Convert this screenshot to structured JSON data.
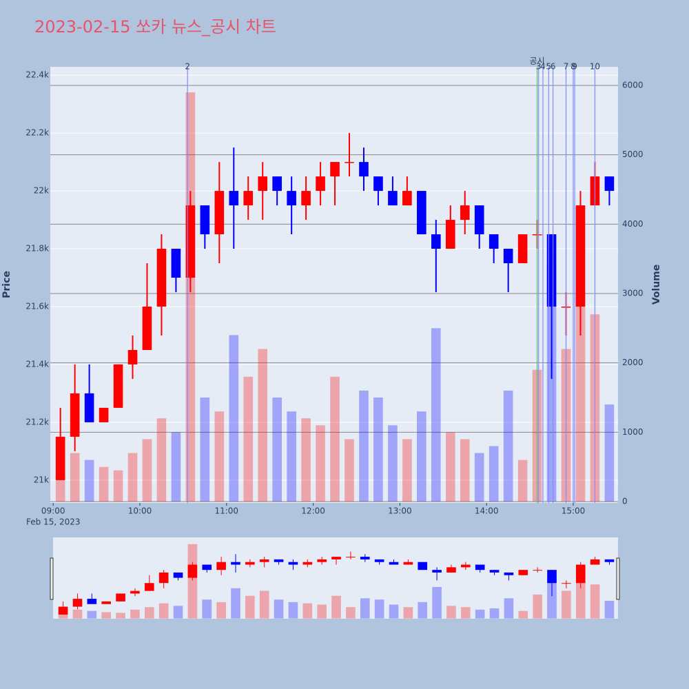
{
  "chart_data": {
    "type": "candlestick",
    "title": "2023-02-15 쏘카 뉴스_공시 차트",
    "y_label": "Price",
    "y2_label": "Volume",
    "x_date_label": "Feb 15, 2023",
    "x": [
      "09:00",
      "09:10",
      "09:20",
      "09:30",
      "09:40",
      "09:50",
      "10:00",
      "10:10",
      "10:20",
      "10:30",
      "10:40",
      "10:50",
      "11:00",
      "11:10",
      "11:20",
      "11:30",
      "11:40",
      "11:50",
      "12:00",
      "12:10",
      "12:20",
      "12:30",
      "12:40",
      "12:50",
      "13:00",
      "13:10",
      "13:20",
      "13:30",
      "13:40",
      "13:50",
      "14:00",
      "14:10",
      "14:20",
      "14:30",
      "14:40",
      "14:50",
      "15:00",
      "15:10",
      "15:20"
    ],
    "open": [
      21000,
      21150,
      21300,
      21200,
      21250,
      21400,
      21450,
      21600,
      21800,
      21700,
      21950,
      21850,
      22000,
      21950,
      22000,
      22050,
      22000,
      21950,
      22000,
      22050,
      22100,
      22100,
      22050,
      22000,
      21950,
      22000,
      21850,
      21800,
      21900,
      21950,
      21850,
      21800,
      21750,
      21850,
      21850,
      21600,
      21600,
      21950,
      22050
    ],
    "high": [
      21250,
      21400,
      21400,
      21250,
      21400,
      21500,
      21750,
      21850,
      21800,
      22000,
      21950,
      22100,
      22150,
      22050,
      22100,
      22050,
      22050,
      22050,
      22100,
      22100,
      22200,
      22150,
      22050,
      22050,
      22050,
      22000,
      21900,
      21950,
      22000,
      21950,
      21850,
      21800,
      21850,
      21900,
      21850,
      21650,
      22000,
      22100,
      22050
    ],
    "low": [
      21000,
      21100,
      21200,
      21200,
      21250,
      21350,
      21450,
      21500,
      21650,
      21650,
      21800,
      21750,
      21800,
      21900,
      21900,
      21950,
      21850,
      21900,
      21950,
      21950,
      22050,
      22000,
      21950,
      21950,
      21950,
      21850,
      21650,
      21800,
      21850,
      21800,
      21750,
      21650,
      21750,
      21800,
      21350,
      21500,
      21500,
      21950,
      21950
    ],
    "close": [
      21150,
      21300,
      21200,
      21250,
      21400,
      21450,
      21600,
      21800,
      21700,
      21950,
      21850,
      22000,
      21950,
      22000,
      22050,
      22000,
      21950,
      22000,
      22050,
      22100,
      22100,
      22050,
      22000,
      21950,
      22000,
      21850,
      21800,
      21900,
      21950,
      21850,
      21800,
      21750,
      21850,
      21850,
      21600,
      21600,
      21950,
      22050,
      22000
    ],
    "volume": [
      900,
      700,
      600,
      500,
      450,
      700,
      900,
      1200,
      1000,
      5900,
      1500,
      1300,
      2400,
      1800,
      2200,
      1500,
      1300,
      1200,
      1100,
      1800,
      900,
      1600,
      1500,
      1100,
      900,
      1300,
      2500,
      1000,
      900,
      700,
      800,
      1600,
      600,
      1900,
      3400,
      2200,
      3000,
      2700,
      1400
    ],
    "increasing_color": "#ff0000",
    "decreasing_color": "#0000ff",
    "xlim": [
      "08:58",
      "15:31"
    ],
    "xticks": [
      "09:00",
      "10:00",
      "11:00",
      "12:00",
      "13:00",
      "14:00",
      "15:00"
    ],
    "ylim": [
      20921,
      22429
    ],
    "yticks": [
      {
        "value": 21000,
        "label": "21k"
      },
      {
        "value": 21200,
        "label": "21.2k"
      },
      {
        "value": 21400,
        "label": "21.4k"
      },
      {
        "value": 21600,
        "label": "21.6k"
      },
      {
        "value": 21800,
        "label": "21.8k"
      },
      {
        "value": 22000,
        "label": "22k"
      },
      {
        "value": 22200,
        "label": "22.2k"
      },
      {
        "value": 22400,
        "label": "22.4k"
      }
    ],
    "y2lim": [
      -20,
      6268
    ],
    "y2ticks": [
      0,
      1000,
      2000,
      3000,
      4000,
      5000,
      6000
    ],
    "events": [
      {
        "label": "2",
        "x": "10:33",
        "color": "#7f8cff"
      },
      {
        "label": "공시",
        "x": "14:35",
        "color": "#5fbf5f"
      },
      {
        "label": "3",
        "x": "14:36",
        "color": "#7f8cff"
      },
      {
        "label": "4",
        "x": "14:39",
        "color": "#7f8cff"
      },
      {
        "label": "5",
        "x": "14:43",
        "color": "#7f8cff"
      },
      {
        "label": "6",
        "x": "14:46",
        "color": "#7f8cff"
      },
      {
        "label": "7",
        "x": "14:55",
        "color": "#7f8cff"
      },
      {
        "label": "8",
        "x": "15:00",
        "color": "#7f8cff"
      },
      {
        "label": "9",
        "x": "15:01",
        "color": "#7f8cff"
      },
      {
        "label": "10",
        "x": "15:15",
        "color": "#7f8cff"
      }
    ]
  }
}
